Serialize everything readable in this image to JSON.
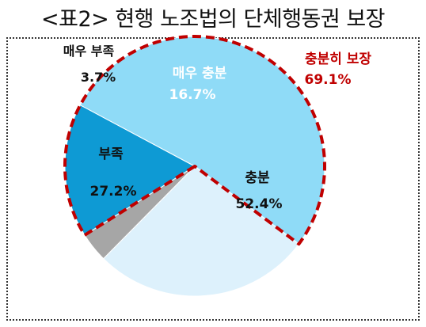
{
  "title": "<표2> 현행 노조법의 단체행동권 보장",
  "chart_data": {
    "type": "pie",
    "title": "<표2> 현행 노조법의 단체행동권 보장",
    "slices": [
      {
        "label": "매우 충분",
        "value": 16.7,
        "value_label": "16.7%",
        "color": "#0E9AD4",
        "text_color": "#ffffff"
      },
      {
        "label": "충분",
        "value": 52.4,
        "value_label": "52.4%",
        "color": "#8FDBF7",
        "text_color": "#111111"
      },
      {
        "label": "부족",
        "value": 27.2,
        "value_label": "27.2%",
        "color": "#DDF1FC",
        "text_color": "#111111"
      },
      {
        "label": "매우 부족",
        "value": 3.7,
        "value_label": "3.7%",
        "color": "#A6A6A6",
        "text_color": "#111111"
      }
    ],
    "annotation": {
      "label": "충분히 보장",
      "value": 69.1,
      "value_label": "69.1%",
      "color": "#C00000",
      "highlights": [
        "매우 충분",
        "충분"
      ]
    }
  }
}
